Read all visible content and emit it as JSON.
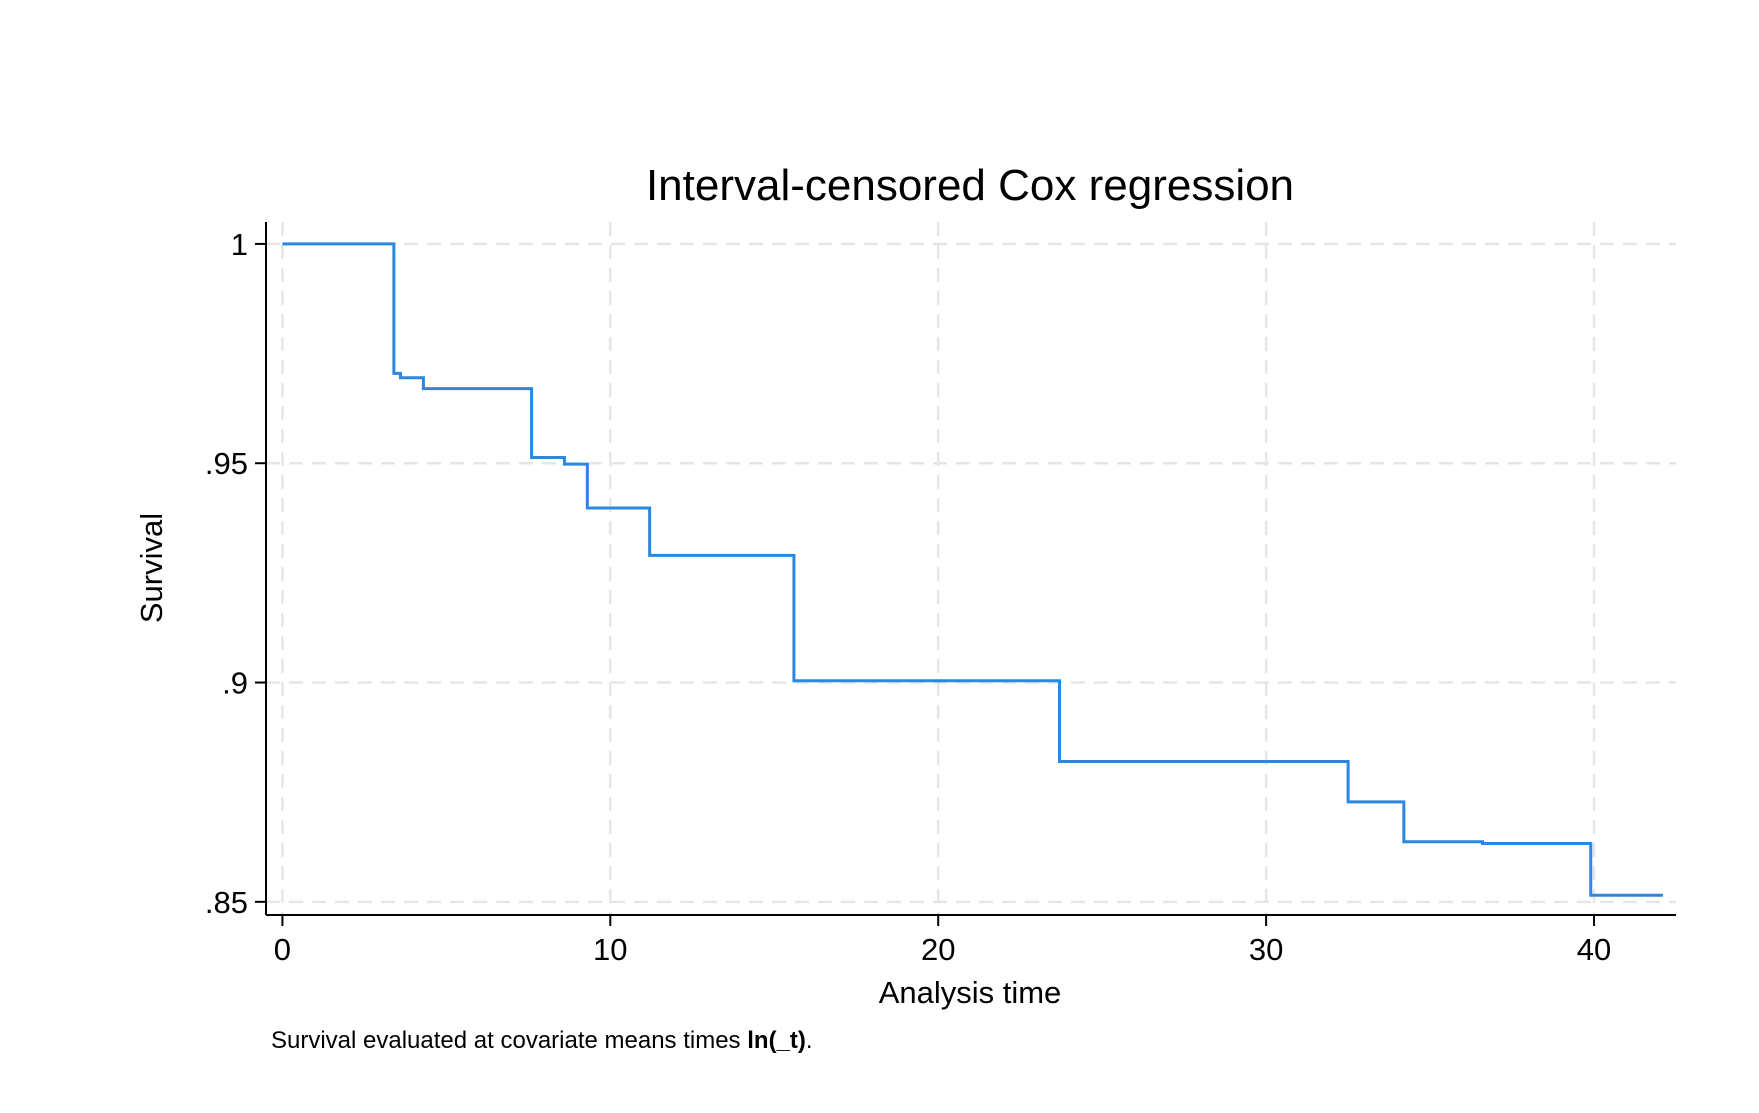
{
  "chart_data": {
    "type": "line",
    "title": "Interval-censored Cox regression",
    "xlabel": "Analysis time",
    "ylabel": "Survival",
    "note": {
      "prefix": "Survival evaluated at covariate means times ",
      "bold": "ln(_t)",
      "suffix": "."
    },
    "xlim": [
      -0.5,
      42.5
    ],
    "ylim": [
      0.847,
      1.005
    ],
    "xticks": [
      0,
      10,
      20,
      30,
      40
    ],
    "xtick_labels": [
      "0",
      "10",
      "20",
      "30",
      "40"
    ],
    "yticks": [
      0.85,
      0.9,
      0.95,
      1
    ],
    "ytick_labels": [
      ".85",
      ".9",
      ".95",
      "1"
    ],
    "grid": true,
    "legend": false,
    "colors": {
      "series": "#2b87e0",
      "grid": "#e6e6e6",
      "axis": "#000000"
    },
    "series": [
      {
        "step": "post",
        "x": [
          0,
          3.4,
          3.6,
          4.3,
          7.6,
          8.6,
          9.3,
          11.2,
          15.6,
          23.7,
          32.5,
          34.2,
          36.6,
          39.9,
          42.1
        ],
        "y": [
          1.0,
          0.9705,
          0.9695,
          0.967,
          0.9513,
          0.9498,
          0.9398,
          0.929,
          0.9004,
          0.882,
          0.8728,
          0.8637,
          0.8633,
          0.8515,
          0.8515
        ]
      }
    ]
  }
}
